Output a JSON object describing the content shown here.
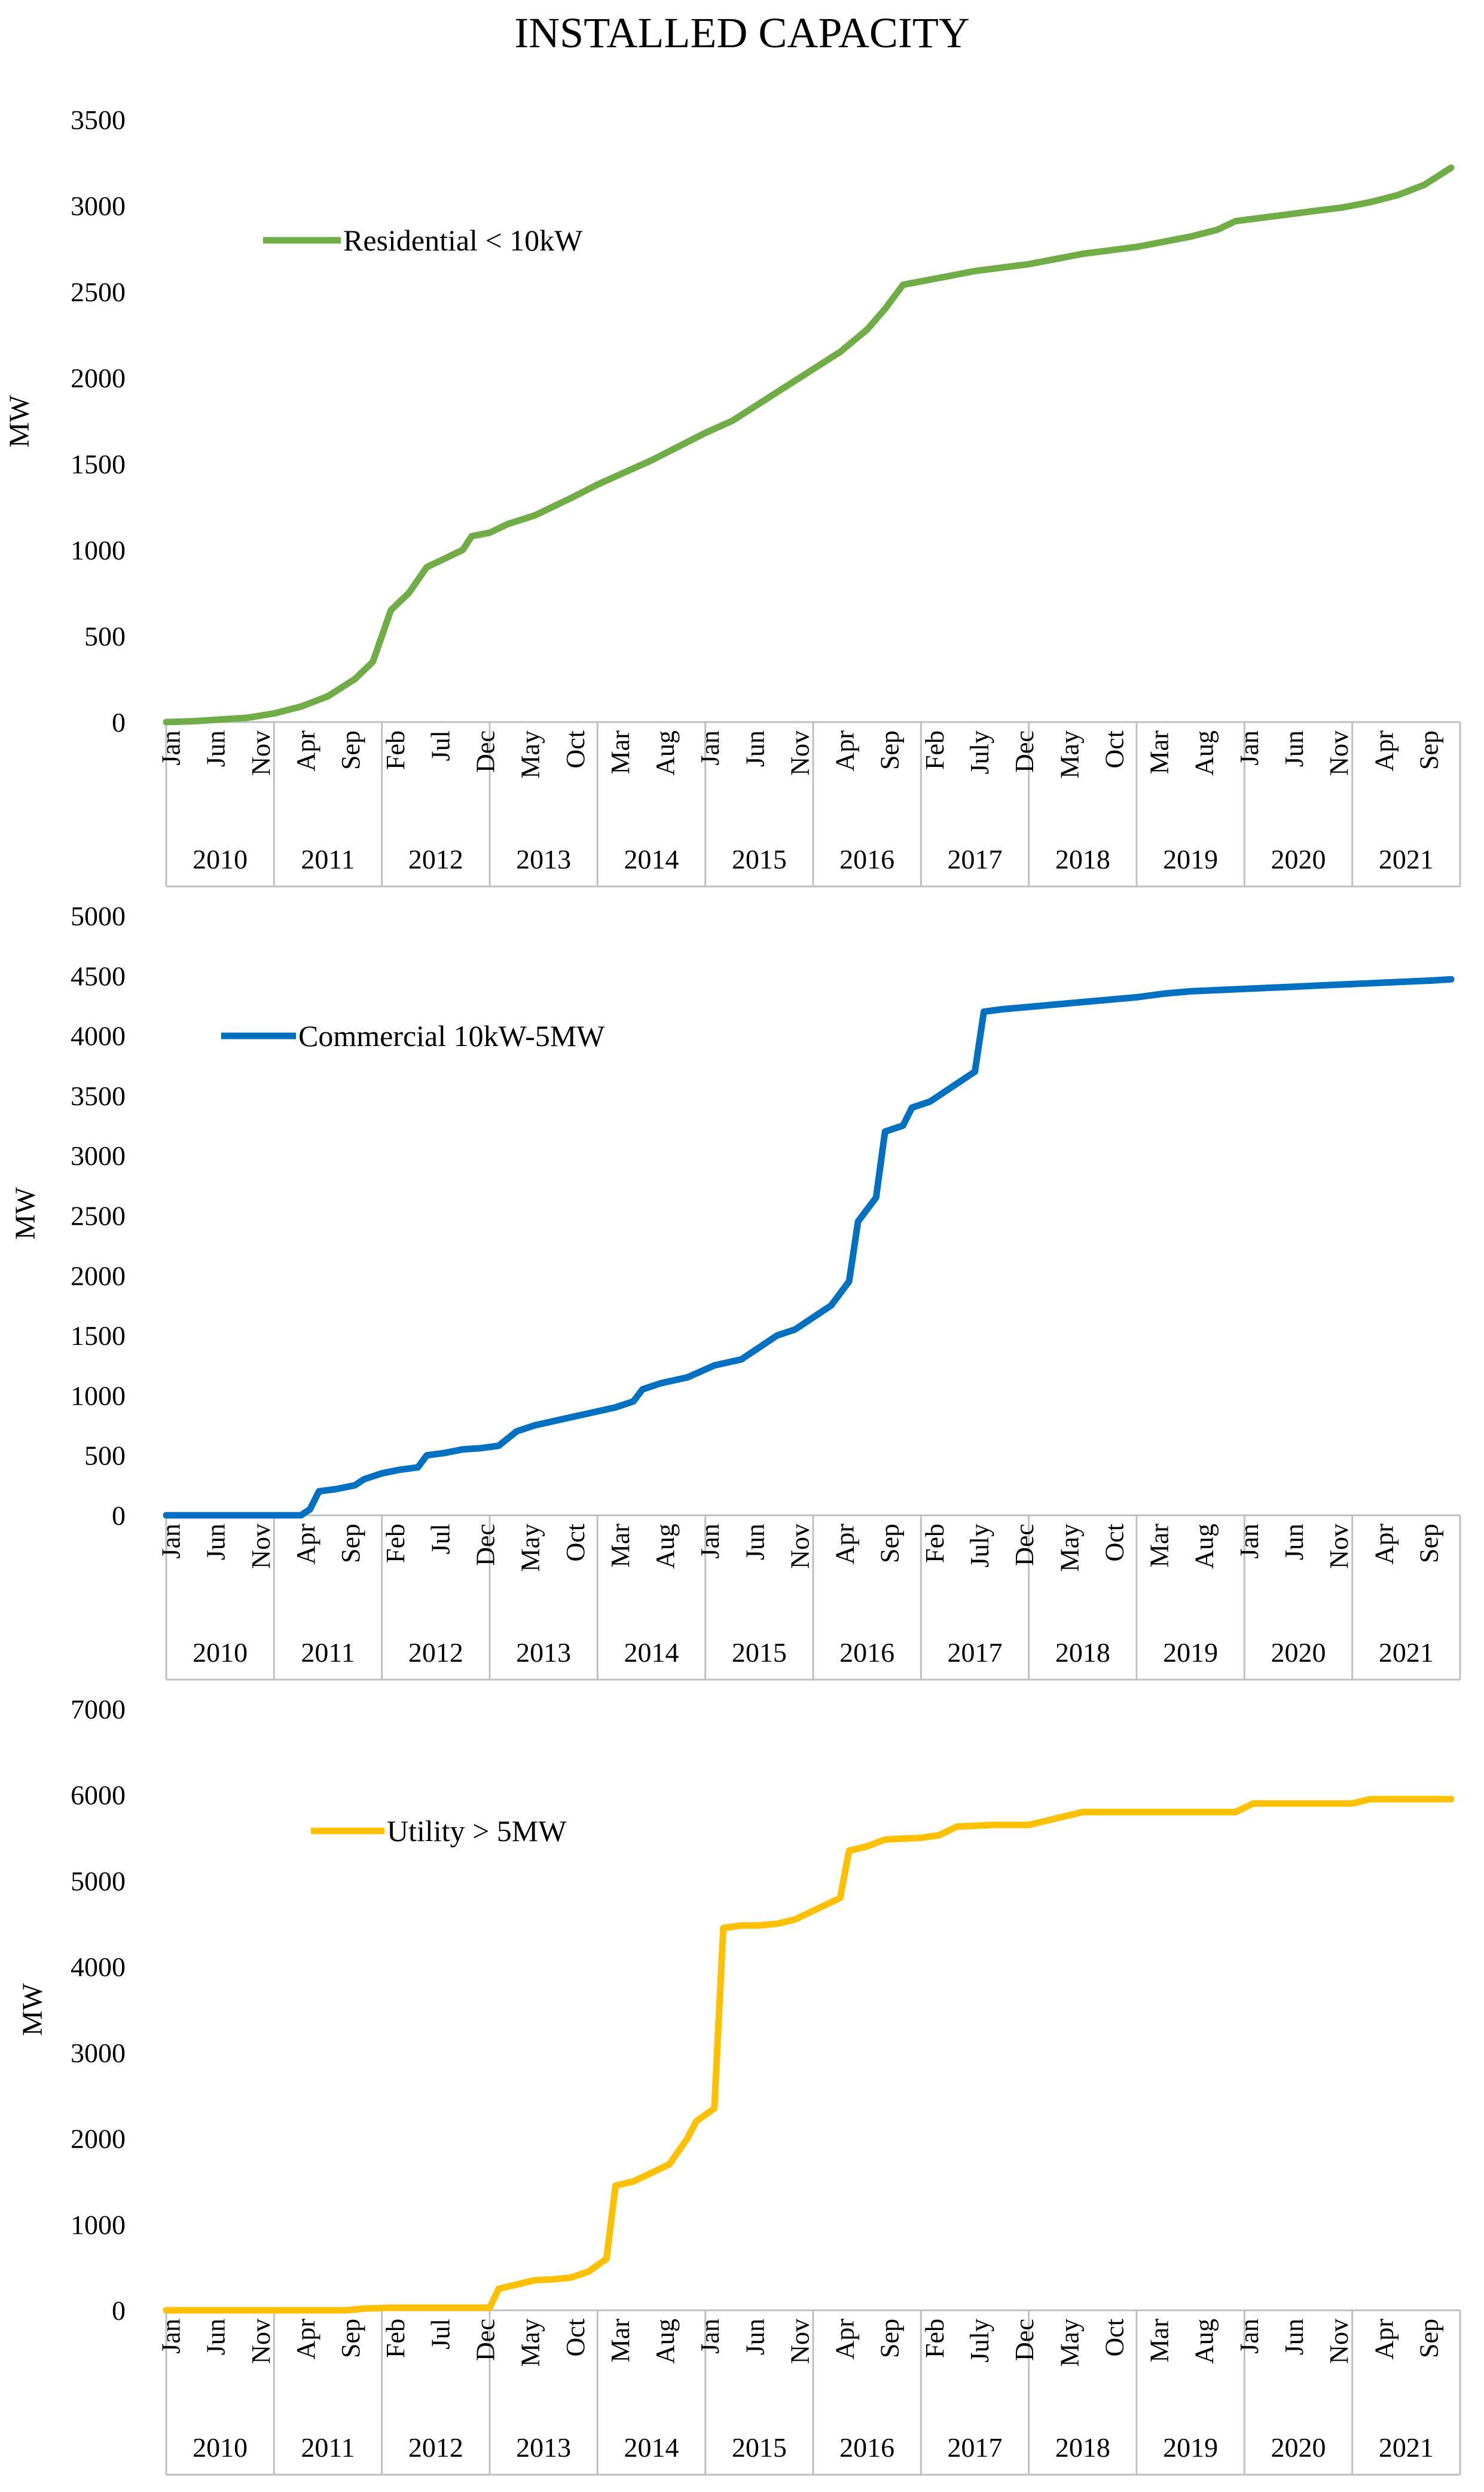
{
  "title": "INSTALLED CAPACITY",
  "chart_data": [
    {
      "type": "line",
      "name": "residential",
      "title": "",
      "ylabel": "MW",
      "xlabel": "",
      "ylim": [
        0,
        3500
      ],
      "yticks": [
        0,
        500,
        1000,
        1500,
        2000,
        2500,
        3000,
        3500
      ],
      "years": [
        "2010",
        "2011",
        "2012",
        "2013",
        "2014",
        "2015",
        "2016",
        "2017",
        "2018",
        "2019",
        "2020",
        "2021"
      ],
      "month_ticks": [
        [
          "Jan",
          0
        ],
        [
          "Jun",
          5
        ],
        [
          "Nov",
          10
        ],
        [
          "Apr",
          15
        ],
        [
          "Sep",
          20
        ],
        [
          "Feb",
          25
        ],
        [
          "Jul",
          30
        ],
        [
          "Dec",
          35
        ],
        [
          "May",
          40
        ],
        [
          "Oct",
          45
        ],
        [
          "Mar",
          50
        ],
        [
          "Aug",
          55
        ],
        [
          "Jan",
          60
        ],
        [
          "Jun",
          65
        ],
        [
          "Nov",
          70
        ],
        [
          "Apr",
          75
        ],
        [
          "Sep",
          80
        ],
        [
          "Feb",
          85
        ],
        [
          "July",
          90
        ],
        [
          "Dec",
          95
        ],
        [
          "May",
          100
        ],
        [
          "Oct",
          105
        ],
        [
          "Mar",
          110
        ],
        [
          "Aug",
          115
        ],
        [
          "Jan",
          120
        ],
        [
          "Jun",
          125
        ],
        [
          "Nov",
          130
        ],
        [
          "Apr",
          135
        ],
        [
          "Sep",
          140
        ]
      ],
      "legend": "Residential < 10kW",
      "color": "#70ad47",
      "series": [
        {
          "name": "Residential < 10kW",
          "points": [
            [
              0,
              0
            ],
            [
              3,
              5
            ],
            [
              6,
              15
            ],
            [
              9,
              25
            ],
            [
              12,
              50
            ],
            [
              15,
              90
            ],
            [
              18,
              150
            ],
            [
              21,
              250
            ],
            [
              23,
              350
            ],
            [
              24,
              500
            ],
            [
              25,
              650
            ],
            [
              27,
              750
            ],
            [
              29,
              900
            ],
            [
              31,
              950
            ],
            [
              33,
              1000
            ],
            [
              34,
              1080
            ],
            [
              36,
              1100
            ],
            [
              38,
              1150
            ],
            [
              41,
              1200
            ],
            [
              43,
              1250
            ],
            [
              45,
              1300
            ],
            [
              48,
              1380
            ],
            [
              51,
              1450
            ],
            [
              54,
              1520
            ],
            [
              57,
              1600
            ],
            [
              60,
              1680
            ],
            [
              63,
              1750
            ],
            [
              66,
              1850
            ],
            [
              69,
              1950
            ],
            [
              72,
              2050
            ],
            [
              75,
              2150
            ],
            [
              78,
              2280
            ],
            [
              80,
              2400
            ],
            [
              82,
              2540
            ],
            [
              84,
              2560
            ],
            [
              87,
              2590
            ],
            [
              90,
              2620
            ],
            [
              93,
              2640
            ],
            [
              96,
              2660
            ],
            [
              99,
              2690
            ],
            [
              102,
              2720
            ],
            [
              105,
              2740
            ],
            [
              108,
              2760
            ],
            [
              111,
              2790
            ],
            [
              114,
              2820
            ],
            [
              117,
              2860
            ],
            [
              119,
              2910
            ],
            [
              122,
              2930
            ],
            [
              125,
              2950
            ],
            [
              128,
              2970
            ],
            [
              131,
              2990
            ],
            [
              134,
              3020
            ],
            [
              137,
              3060
            ],
            [
              140,
              3120
            ],
            [
              143,
              3220
            ]
          ]
        }
      ]
    },
    {
      "type": "line",
      "name": "commercial",
      "title": "",
      "ylabel": "MW",
      "xlabel": "",
      "ylim": [
        0,
        5000
      ],
      "yticks": [
        0,
        500,
        1000,
        1500,
        2000,
        2500,
        3000,
        3500,
        4000,
        4500,
        5000
      ],
      "years": [
        "2010",
        "2011",
        "2012",
        "2013",
        "2014",
        "2015",
        "2016",
        "2017",
        "2018",
        "2019",
        "2020",
        "2021"
      ],
      "month_ticks": [
        [
          "Jan",
          0
        ],
        [
          "Jun",
          5
        ],
        [
          "Nov",
          10
        ],
        [
          "Apr",
          15
        ],
        [
          "Sep",
          20
        ],
        [
          "Feb",
          25
        ],
        [
          "Jul",
          30
        ],
        [
          "Dec",
          35
        ],
        [
          "May",
          40
        ],
        [
          "Oct",
          45
        ],
        [
          "Mar",
          50
        ],
        [
          "Aug",
          55
        ],
        [
          "Jan",
          60
        ],
        [
          "Jun",
          65
        ],
        [
          "Nov",
          70
        ],
        [
          "Apr",
          75
        ],
        [
          "Sep",
          80
        ],
        [
          "Feb",
          85
        ],
        [
          "July",
          90
        ],
        [
          "Dec",
          95
        ],
        [
          "May",
          100
        ],
        [
          "Oct",
          105
        ],
        [
          "Mar",
          110
        ],
        [
          "Aug",
          115
        ],
        [
          "Jan",
          120
        ],
        [
          "Jun",
          125
        ],
        [
          "Nov",
          130
        ],
        [
          "Apr",
          135
        ],
        [
          "Sep",
          140
        ]
      ],
      "legend": "Commercial 10kW-5MW",
      "color": "#0070c0",
      "series": [
        {
          "name": "Commercial 10kW-5MW",
          "points": [
            [
              0,
              0
            ],
            [
              5,
              0
            ],
            [
              10,
              0
            ],
            [
              15,
              0
            ],
            [
              16,
              50
            ],
            [
              17,
              200
            ],
            [
              19,
              220
            ],
            [
              21,
              250
            ],
            [
              22,
              300
            ],
            [
              24,
              350
            ],
            [
              26,
              380
            ],
            [
              28,
              400
            ],
            [
              29,
              500
            ],
            [
              31,
              520
            ],
            [
              33,
              550
            ],
            [
              35,
              560
            ],
            [
              37,
              580
            ],
            [
              39,
              700
            ],
            [
              41,
              750
            ],
            [
              44,
              800
            ],
            [
              47,
              850
            ],
            [
              50,
              900
            ],
            [
              52,
              950
            ],
            [
              53,
              1050
            ],
            [
              55,
              1100
            ],
            [
              58,
              1150
            ],
            [
              61,
              1250
            ],
            [
              64,
              1300
            ],
            [
              66,
              1400
            ],
            [
              68,
              1500
            ],
            [
              70,
              1550
            ],
            [
              72,
              1650
            ],
            [
              74,
              1750
            ],
            [
              76,
              1950
            ],
            [
              77,
              2450
            ],
            [
              79,
              2650
            ],
            [
              80,
              3200
            ],
            [
              82,
              3250
            ],
            [
              83,
              3400
            ],
            [
              85,
              3450
            ],
            [
              87,
              3550
            ],
            [
              89,
              3650
            ],
            [
              90,
              3700
            ],
            [
              91,
              4200
            ],
            [
              93,
              4220
            ],
            [
              96,
              4240
            ],
            [
              99,
              4260
            ],
            [
              102,
              4280
            ],
            [
              105,
              4300
            ],
            [
              108,
              4320
            ],
            [
              111,
              4350
            ],
            [
              114,
              4370
            ],
            [
              117,
              4380
            ],
            [
              120,
              4390
            ],
            [
              123,
              4400
            ],
            [
              126,
              4410
            ],
            [
              129,
              4420
            ],
            [
              132,
              4430
            ],
            [
              135,
              4440
            ],
            [
              138,
              4450
            ],
            [
              141,
              4460
            ],
            [
              143,
              4470
            ]
          ]
        }
      ]
    },
    {
      "type": "line",
      "name": "utility",
      "title": "",
      "ylabel": "MW",
      "xlabel": "",
      "ylim": [
        0,
        7000
      ],
      "yticks": [
        0,
        1000,
        2000,
        3000,
        4000,
        5000,
        6000,
        7000
      ],
      "years": [
        "2010",
        "2011",
        "2012",
        "2013",
        "2014",
        "2015",
        "2016",
        "2017",
        "2018",
        "2019",
        "2020",
        "2021"
      ],
      "month_ticks": [
        [
          "Jan",
          0
        ],
        [
          "Jun",
          5
        ],
        [
          "Nov",
          10
        ],
        [
          "Apr",
          15
        ],
        [
          "Sep",
          20
        ],
        [
          "Feb",
          25
        ],
        [
          "Jul",
          30
        ],
        [
          "Dec",
          35
        ],
        [
          "May",
          40
        ],
        [
          "Oct",
          45
        ],
        [
          "Mar",
          50
        ],
        [
          "Aug",
          55
        ],
        [
          "Jan",
          60
        ],
        [
          "Jun",
          65
        ],
        [
          "Nov",
          70
        ],
        [
          "Apr",
          75
        ],
        [
          "Sep",
          80
        ],
        [
          "Feb",
          85
        ],
        [
          "July",
          90
        ],
        [
          "Dec",
          95
        ],
        [
          "May",
          100
        ],
        [
          "Oct",
          105
        ],
        [
          "Mar",
          110
        ],
        [
          "Aug",
          115
        ],
        [
          "Jan",
          120
        ],
        [
          "Jun",
          125
        ],
        [
          "Nov",
          130
        ],
        [
          "Apr",
          135
        ],
        [
          "Sep",
          140
        ]
      ],
      "legend": "Utility > 5MW",
      "color": "#ffc000",
      "series": [
        {
          "name": "Utility > 5MW",
          "points": [
            [
              0,
              0
            ],
            [
              10,
              0
            ],
            [
              20,
              0
            ],
            [
              22,
              20
            ],
            [
              25,
              30
            ],
            [
              30,
              30
            ],
            [
              34,
              30
            ],
            [
              36,
              30
            ],
            [
              37,
              250
            ],
            [
              39,
              300
            ],
            [
              41,
              350
            ],
            [
              43,
              360
            ],
            [
              45,
              380
            ],
            [
              47,
              450
            ],
            [
              49,
              600
            ],
            [
              50,
              1450
            ],
            [
              52,
              1500
            ],
            [
              54,
              1600
            ],
            [
              56,
              1700
            ],
            [
              58,
              2000
            ],
            [
              59,
              2200
            ],
            [
              61,
              2350
            ],
            [
              62,
              4450
            ],
            [
              64,
              4480
            ],
            [
              66,
              4480
            ],
            [
              68,
              4500
            ],
            [
              70,
              4550
            ],
            [
              72,
              4650
            ],
            [
              74,
              4750
            ],
            [
              75,
              4800
            ],
            [
              76,
              5350
            ],
            [
              78,
              5400
            ],
            [
              80,
              5480
            ],
            [
              84,
              5500
            ],
            [
              86,
              5530
            ],
            [
              88,
              5630
            ],
            [
              92,
              5650
            ],
            [
              96,
              5650
            ],
            [
              98,
              5700
            ],
            [
              100,
              5750
            ],
            [
              102,
              5800
            ],
            [
              108,
              5800
            ],
            [
              114,
              5800
            ],
            [
              119,
              5800
            ],
            [
              121,
              5900
            ],
            [
              126,
              5900
            ],
            [
              132,
              5900
            ],
            [
              134,
              5950
            ],
            [
              140,
              5950
            ],
            [
              143,
              5950
            ]
          ]
        }
      ]
    }
  ]
}
